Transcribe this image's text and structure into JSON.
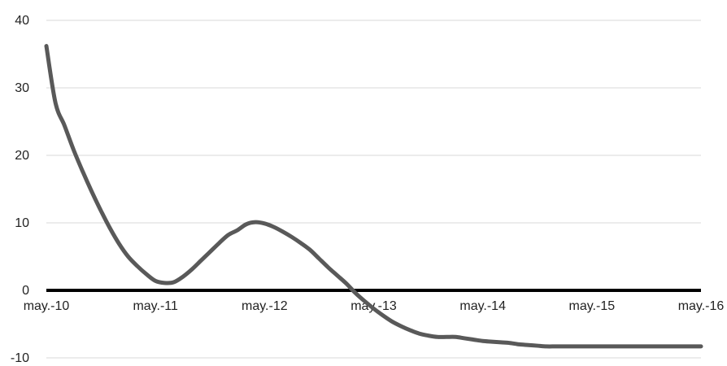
{
  "chart_data": {
    "type": "line",
    "title": "",
    "xlabel": "",
    "ylabel": "",
    "x_tick_labels": [
      "may.-10",
      "may.-11",
      "may.-12",
      "may.-13",
      "may.-14",
      "may.-15",
      "may.-16"
    ],
    "y_tick_labels": [
      "40",
      "30",
      "20",
      "10",
      "0",
      "-10"
    ],
    "y_ticks": [
      40,
      30,
      20,
      10,
      0,
      -10
    ],
    "ylim": [
      -10,
      40
    ],
    "xlim": [
      "2010-05",
      "2016-05"
    ],
    "grid": "horizontal",
    "legend": "none",
    "series": [
      {
        "x": [
          "2010-05",
          "2010-06",
          "2010-07",
          "2010-08",
          "2010-09",
          "2010-10",
          "2010-11",
          "2010-12",
          "2011-01",
          "2011-02",
          "2011-03",
          "2011-04",
          "2011-05",
          "2011-06",
          "2011-07",
          "2011-08",
          "2011-09",
          "2011-10",
          "2011-11",
          "2011-12",
          "2012-01",
          "2012-02",
          "2012-03",
          "2012-04",
          "2012-05",
          "2012-06",
          "2012-07",
          "2012-08",
          "2012-09",
          "2012-10",
          "2012-11",
          "2012-12",
          "2013-01",
          "2013-02",
          "2013-03",
          "2013-04",
          "2013-05",
          "2013-06",
          "2013-07",
          "2013-08",
          "2013-09",
          "2013-10",
          "2013-11",
          "2013-12",
          "2014-01",
          "2014-02",
          "2014-03",
          "2014-04",
          "2014-05",
          "2014-06",
          "2014-07",
          "2014-08",
          "2014-09",
          "2014-10",
          "2014-11",
          "2014-12",
          "2015-01",
          "2015-02",
          "2015-03",
          "2015-04",
          "2015-05",
          "2015-06",
          "2015-07",
          "2015-08",
          "2015-09",
          "2015-10",
          "2015-11",
          "2015-12",
          "2016-01",
          "2016-02",
          "2016-03",
          "2016-04",
          "2016-05"
        ],
        "values": [
          36.2,
          27.8,
          24.4,
          20.8,
          17.6,
          14.6,
          11.8,
          9.2,
          6.9,
          5.0,
          3.6,
          2.4,
          1.4,
          1.1,
          1.2,
          2.0,
          3.1,
          4.4,
          5.7,
          7.0,
          8.2,
          8.9,
          9.8,
          10.1,
          9.9,
          9.4,
          8.7,
          7.9,
          7.0,
          6.0,
          4.7,
          3.4,
          2.2,
          1.0,
          -0.4,
          -1.6,
          -2.7,
          -3.7,
          -4.6,
          -5.3,
          -5.9,
          -6.4,
          -6.7,
          -6.9,
          -6.9,
          -6.9,
          -7.1,
          -7.3,
          -7.5,
          -7.6,
          -7.7,
          -7.8,
          -8.0,
          -8.1,
          -8.2,
          -8.3,
          -8.3,
          -8.3,
          -8.3,
          -8.3,
          -8.3,
          -8.3,
          -8.3,
          -8.3,
          -8.3,
          -8.3,
          -8.3,
          -8.3,
          -8.3,
          -8.3,
          -8.3,
          -8.3,
          -8.3
        ],
        "color": "#595959"
      }
    ],
    "zero_line_color": "#000000",
    "grid_color": "#d9d9d9"
  }
}
